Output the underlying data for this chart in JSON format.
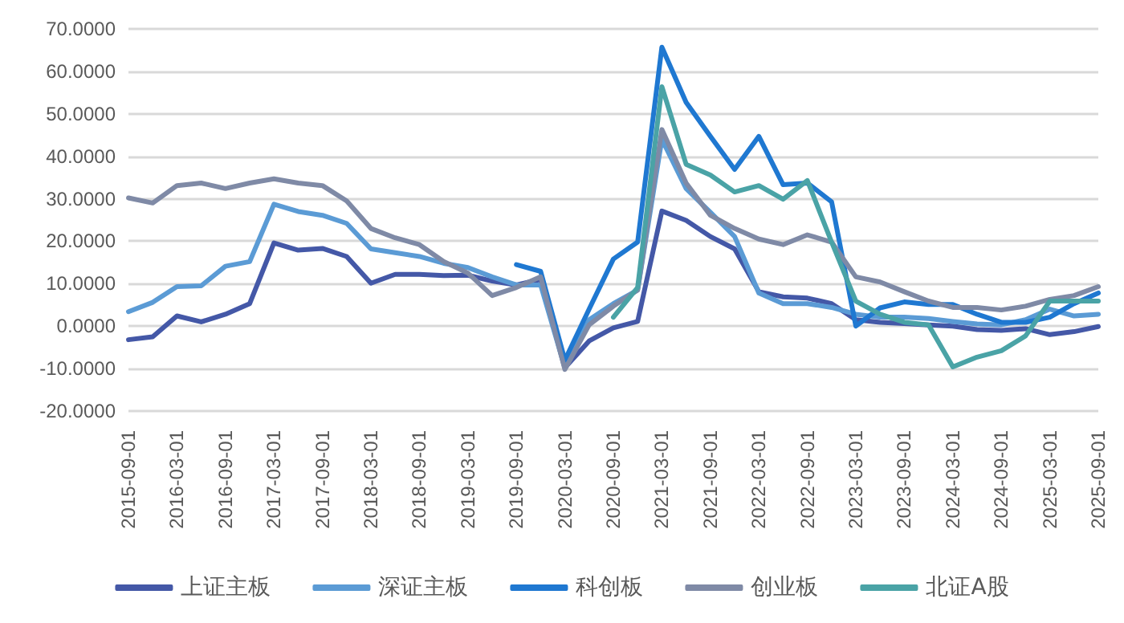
{
  "chart_data": {
    "type": "line",
    "categories": [
      "2015-09-01",
      null,
      "2016-03-01",
      null,
      "2016-09-01",
      null,
      "2017-03-01",
      null,
      "2017-09-01",
      null,
      "2018-03-01",
      null,
      "2018-09-01",
      null,
      "2019-03-01",
      null,
      "2019-09-01",
      null,
      "2020-03-01",
      null,
      "2020-09-01",
      null,
      "2021-03-01",
      null,
      "2021-09-01",
      null,
      "2022-03-01",
      null,
      "2022-09-01",
      null,
      "2023-03-01",
      null,
      "2023-09-01",
      null,
      "2024-03-01",
      null,
      "2024-09-01",
      null,
      "2025-03-01",
      null,
      "2025-09-01"
    ],
    "series": [
      {
        "name": "上证主板",
        "color": "#4458a7",
        "values": [
          -3.2,
          -2.5,
          2.4,
          1.0,
          2.8,
          5.3,
          19.6,
          17.9,
          18.3,
          16.4,
          10.1,
          12.2,
          12.2,
          11.9,
          12.0,
          10.6,
          9.7,
          11.0,
          -9.8,
          -3.5,
          -0.4,
          1.1,
          27.1,
          24.9,
          21.1,
          18.2,
          8.1,
          6.9,
          6.6,
          5.3,
          1.5,
          0.9,
          0.6,
          0.3,
          0.0,
          -0.8,
          -1.0,
          -0.6,
          -2.0,
          -1.3,
          -0.1
        ]
      },
      {
        "name": "深证主板",
        "color": "#5b9bd5",
        "values": [
          3.4,
          5.6,
          9.3,
          9.5,
          14.1,
          15.2,
          28.7,
          27.0,
          26.1,
          24.2,
          18.2,
          17.3,
          16.4,
          14.8,
          13.8,
          11.6,
          9.7,
          9.7,
          -9.8,
          1.5,
          5.3,
          8.5,
          44.0,
          32.4,
          26.8,
          21.1,
          7.8,
          5.3,
          5.3,
          4.4,
          2.8,
          2.1,
          2.1,
          1.8,
          1.1,
          0.5,
          0.3,
          1.5,
          4.0,
          2.4,
          2.8
        ]
      },
      {
        "name": "科创板",
        "color": "#1f78d1",
        "values": [
          null,
          null,
          null,
          null,
          null,
          null,
          null,
          null,
          null,
          null,
          null,
          null,
          null,
          null,
          null,
          null,
          14.5,
          12.9,
          -8.0,
          4.0,
          15.8,
          19.8,
          65.7,
          52.7,
          44.7,
          36.9,
          44.7,
          33.3,
          33.7,
          29.3,
          0.0,
          4.3,
          5.7,
          5.1,
          5.1,
          2.8,
          0.9,
          0.9,
          2.1,
          5.3,
          7.8
        ]
      },
      {
        "name": "创业板",
        "color": "#7f8aa6",
        "values": [
          30.2,
          29.0,
          33.1,
          33.7,
          32.4,
          33.7,
          34.7,
          33.7,
          33.1,
          29.5,
          23.0,
          20.8,
          19.2,
          15.2,
          12.5,
          7.2,
          9.1,
          11.6,
          -10.2,
          0.3,
          4.7,
          8.5,
          46.3,
          33.7,
          26.1,
          23.0,
          20.5,
          19.2,
          21.5,
          19.8,
          11.6,
          10.4,
          8.1,
          5.9,
          4.4,
          4.4,
          3.8,
          4.7,
          6.3,
          7.2,
          9.3
        ]
      },
      {
        "name": "北证A股",
        "color": "#4aa3a6",
        "values": [
          null,
          null,
          null,
          null,
          null,
          null,
          null,
          null,
          null,
          null,
          null,
          null,
          null,
          null,
          null,
          null,
          null,
          null,
          null,
          null,
          2.1,
          9.1,
          56.4,
          38.1,
          35.6,
          31.6,
          33.1,
          29.9,
          34.3,
          19.8,
          5.9,
          2.8,
          0.9,
          0.3,
          -9.6,
          -7.3,
          -5.8,
          -2.3,
          5.9,
          5.9,
          5.9
        ]
      }
    ],
    "ylim": [
      -20,
      70
    ],
    "yticks": [
      {
        "value": -20,
        "label": "-20.0000"
      },
      {
        "value": -10,
        "label": "-10.0000"
      },
      {
        "value": 0,
        "label": "0.0000"
      },
      {
        "value": 10,
        "label": "10.0000"
      },
      {
        "value": 20,
        "label": "20.0000"
      },
      {
        "value": 30,
        "label": "30.0000"
      },
      {
        "value": 40,
        "label": "40.0000"
      },
      {
        "value": 50,
        "label": "50.0000"
      },
      {
        "value": 60,
        "label": "60.0000"
      },
      {
        "value": 70,
        "label": "70.0000"
      }
    ],
    "grid": "y",
    "legend": "bottom",
    "marker": "none",
    "line_style": "solid"
  }
}
